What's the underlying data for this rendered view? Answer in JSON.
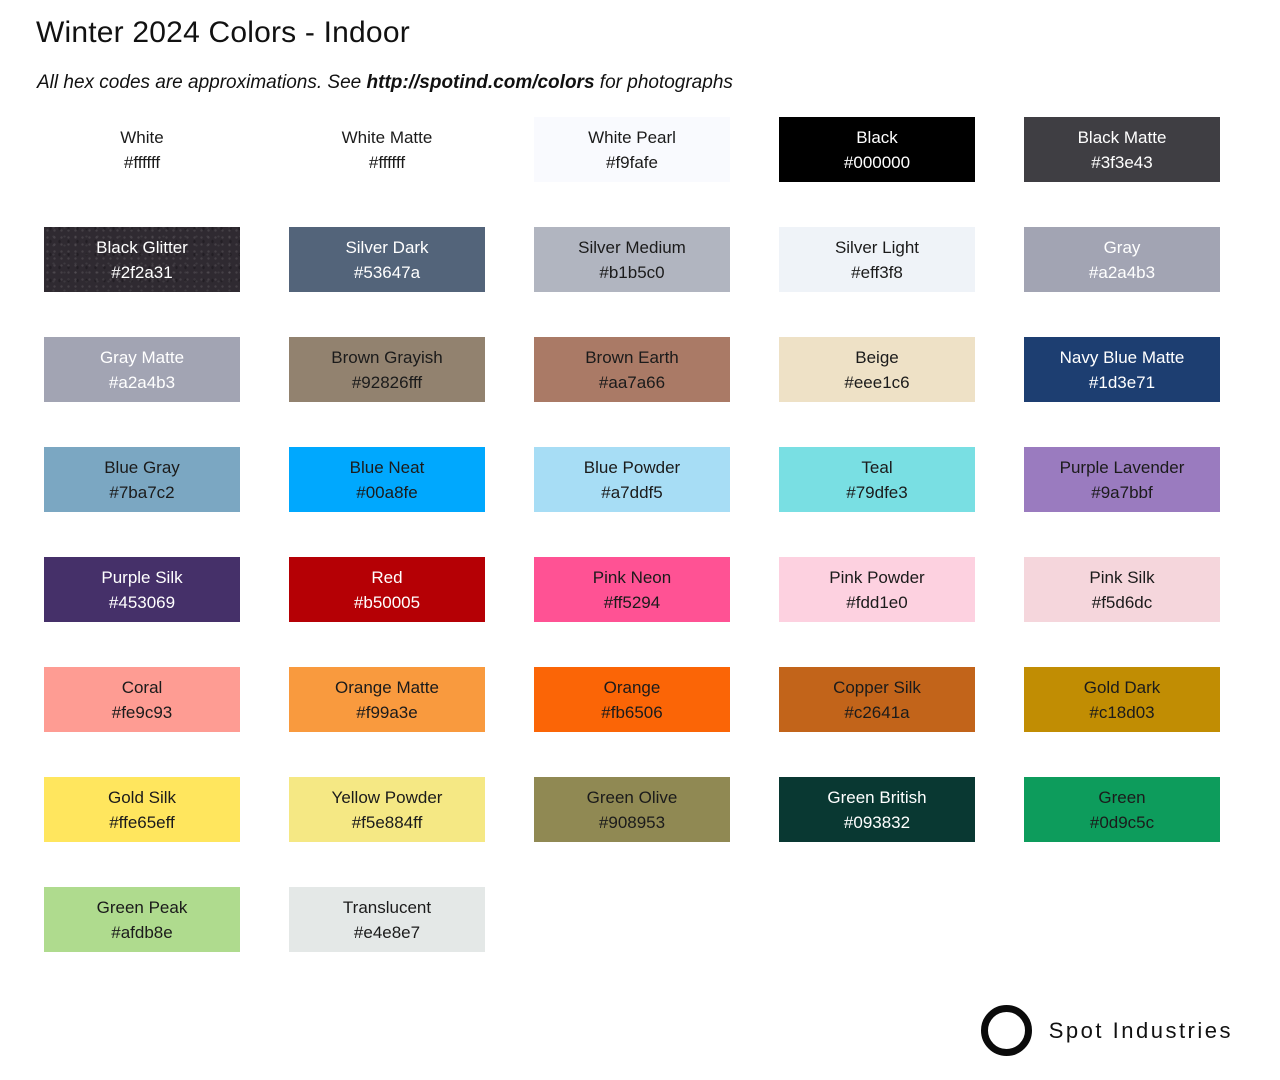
{
  "header": {
    "title": "Winter 2024 Colors - Indoor",
    "subtitle_prefix": "All hex codes are approximations. See ",
    "subtitle_link": "http://spotind.com/colors",
    "subtitle_suffix": " for photographs"
  },
  "colors": {
    "dark_text": "#1b1b1b",
    "light_text": "#ffffff",
    "page_background": "#ffffff"
  },
  "swatches": [
    {
      "name": "White",
      "hex": "#ffffff",
      "bg": "#ffffff",
      "fg": "#1b1b1b"
    },
    {
      "name": "White Matte",
      "hex": "#ffffff",
      "bg": "#ffffff",
      "fg": "#1b1b1b"
    },
    {
      "name": "White Pearl",
      "hex": "#f9fafe",
      "bg": "#f9fafe",
      "fg": "#1b1b1b"
    },
    {
      "name": "Black",
      "hex": "#000000",
      "bg": "#000000",
      "fg": "#ffffff"
    },
    {
      "name": "Black Matte",
      "hex": "#3f3e43",
      "bg": "#3f3e43",
      "fg": "#ffffff"
    },
    {
      "name": "Black Glitter",
      "hex": "#2f2a31",
      "bg": "#2f2a31",
      "fg": "#ffffff",
      "texture": "glitter"
    },
    {
      "name": "Silver Dark",
      "hex": "#53647a",
      "bg": "#53647a",
      "fg": "#ffffff"
    },
    {
      "name": "Silver Medium",
      "hex": "#b1b5c0",
      "bg": "#b1b5c0",
      "fg": "#1b1b1b"
    },
    {
      "name": "Silver Light",
      "hex": "#eff3f8",
      "bg": "#eff3f8",
      "fg": "#1b1b1b"
    },
    {
      "name": "Gray",
      "hex": "#a2a4b3",
      "bg": "#a2a4b3",
      "fg": "#ffffff"
    },
    {
      "name": "Gray Matte",
      "hex": "#a2a4b3",
      "bg": "#a2a4b3",
      "fg": "#ffffff"
    },
    {
      "name": "Brown Grayish",
      "hex": "#92826fff",
      "bg": "#92826f",
      "fg": "#1b1b1b"
    },
    {
      "name": "Brown Earth",
      "hex": "#aa7a66",
      "bg": "#aa7a66",
      "fg": "#1b1b1b"
    },
    {
      "name": "Beige",
      "hex": "#eee1c6",
      "bg": "#eee1c6",
      "fg": "#1b1b1b"
    },
    {
      "name": "Navy Blue Matte",
      "hex": "#1d3e71",
      "bg": "#1d3e71",
      "fg": "#ffffff"
    },
    {
      "name": "Blue Gray",
      "hex": "#7ba7c2",
      "bg": "#7ba7c2",
      "fg": "#1b1b1b"
    },
    {
      "name": "Blue Neat",
      "hex": "#00a8fe",
      "bg": "#00a8fe",
      "fg": "#1b1b1b"
    },
    {
      "name": "Blue Powder",
      "hex": "#a7ddf5",
      "bg": "#a7ddf5",
      "fg": "#1b1b1b"
    },
    {
      "name": "Teal",
      "hex": "#79dfe3",
      "bg": "#79dfe3",
      "fg": "#1b1b1b"
    },
    {
      "name": "Purple Lavender",
      "hex": "#9a7bbf",
      "bg": "#9a7bbf",
      "fg": "#1b1b1b"
    },
    {
      "name": "Purple Silk",
      "hex": "#453069",
      "bg": "#453069",
      "fg": "#ffffff"
    },
    {
      "name": "Red",
      "hex": "#b50005",
      "bg": "#b50005",
      "fg": "#ffffff"
    },
    {
      "name": "Pink Neon",
      "hex": "#ff5294",
      "bg": "#ff5294",
      "fg": "#1b1b1b"
    },
    {
      "name": "Pink Powder",
      "hex": "#fdd1e0",
      "bg": "#fdd1e0",
      "fg": "#1b1b1b"
    },
    {
      "name": "Pink Silk",
      "hex": "#f5d6dc",
      "bg": "#f5d6dc",
      "fg": "#1b1b1b"
    },
    {
      "name": "Coral",
      "hex": "#fe9c93",
      "bg": "#fe9c93",
      "fg": "#1b1b1b"
    },
    {
      "name": "Orange Matte",
      "hex": "#f99a3e",
      "bg": "#f99a3e",
      "fg": "#1b1b1b"
    },
    {
      "name": "Orange",
      "hex": "#fb6506",
      "bg": "#fb6506",
      "fg": "#1b1b1b"
    },
    {
      "name": "Copper Silk",
      "hex": "#c2641a",
      "bg": "#c2641a",
      "fg": "#1b1b1b"
    },
    {
      "name": "Gold Dark",
      "hex": "#c18d03",
      "bg": "#c18d03",
      "fg": "#1b1b1b"
    },
    {
      "name": "Gold Silk",
      "hex": "#ffe65eff",
      "bg": "#ffe65e",
      "fg": "#1b1b1b"
    },
    {
      "name": "Yellow Powder",
      "hex": "#f5e884ff",
      "bg": "#f5e884",
      "fg": "#1b1b1b"
    },
    {
      "name": "Green Olive",
      "hex": "#908953",
      "bg": "#908953",
      "fg": "#1b1b1b"
    },
    {
      "name": "Green British",
      "hex": "#093832",
      "bg": "#093832",
      "fg": "#ffffff"
    },
    {
      "name": "Green",
      "hex": "#0d9c5c",
      "bg": "#0d9c5c",
      "fg": "#1b1b1b"
    },
    {
      "name": "Green Peak",
      "hex": "#afdb8e",
      "bg": "#afdb8e",
      "fg": "#1b1b1b"
    },
    {
      "name": "Translucent",
      "hex": "#e4e8e7",
      "bg": "#e4e8e7",
      "fg": "#1b1b1b"
    }
  ],
  "footer": {
    "brand": "Spot Industries"
  }
}
